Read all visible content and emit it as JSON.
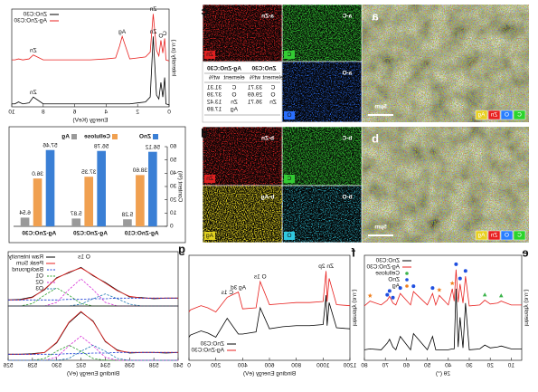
{
  "chart_data": [
    {
      "type": "line",
      "x_label": "Energy (KeV)",
      "y_label": "Intensity (a.u.)",
      "xlim": [
        0,
        10
      ],
      "xticks": [
        0,
        2,
        4,
        6,
        8,
        10
      ],
      "ylim": [
        0,
        100
      ],
      "x": [
        0,
        0.2,
        0.28,
        0.4,
        0.52,
        0.65,
        0.8,
        1.01,
        1.2,
        1.5,
        2,
        2.5,
        2.98,
        3.15,
        3.4,
        4,
        5,
        6,
        7,
        8,
        8.63,
        8.9,
        9.3,
        9.57,
        9.8,
        10
      ],
      "series": [
        {
          "name": "ZnO:C30",
          "color": "#000000",
          "values": [
            2,
            3,
            30,
            10,
            25,
            8,
            12,
            72,
            10,
            5,
            4,
            3,
            3,
            3,
            3,
            3,
            3,
            3,
            3,
            3,
            10,
            4,
            3,
            5,
            3,
            3
          ]
        },
        {
          "name": "Ag-ZnO:C30",
          "color": "#e8211f",
          "values": [
            47,
            48,
            70,
            55,
            68,
            52,
            58,
            95,
            56,
            51,
            50,
            49,
            72,
            62,
            50,
            49,
            48,
            48,
            48,
            48,
            53,
            49,
            48,
            49,
            48,
            48
          ]
        }
      ],
      "annotations": [
        {
          "text": "C",
          "series": 1,
          "x": 0.28
        },
        {
          "text": "O",
          "series": 1,
          "x": 0.52
        },
        {
          "text": "Zn",
          "series": 1,
          "x": 1.01
        },
        {
          "text": "Ag",
          "series": 1,
          "x": 2.98
        },
        {
          "text": "Zn",
          "series": 1,
          "x": 8.63
        },
        {
          "text": "Zn",
          "series": 0,
          "x": 1.01
        },
        {
          "text": "Zn",
          "series": 0,
          "x": 8.63
        }
      ],
      "legend": "upper right"
    },
    {
      "type": "bar",
      "y_label": "Content (%)",
      "categories": [
        "Ag-ZnO:C10",
        "Ag-ZnO:C20",
        "Ag-ZnO:C30"
      ],
      "series": [
        {
          "name": "ZnO",
          "color": "#3a7fd5",
          "values": [
            56.12,
            56.78,
            57.46
          ],
          "value_labels": [
            "56.12",
            "56.78",
            "57.46"
          ]
        },
        {
          "name": "Cellulose",
          "color": "#f0a050",
          "values": [
            38.6,
            37.35,
            36.0
          ],
          "value_labels": [
            "38.60",
            "37.35",
            "36.0"
          ]
        },
        {
          "name": "Ag",
          "color": "#9a9a9a",
          "values": [
            5.28,
            5.87,
            6.54
          ],
          "value_labels": [
            "5.28",
            "5.87",
            "6.54"
          ]
        }
      ],
      "ylim": [
        0,
        60
      ],
      "yticks": [
        0,
        10,
        20,
        30,
        40,
        50,
        60
      ],
      "legend": "upper center"
    },
    {
      "type": "line",
      "label": "g",
      "title": "O 1s",
      "xlim": [
        540,
        526
      ],
      "ylim": [
        0,
        90
      ],
      "x": [
        526,
        527,
        528,
        529,
        530,
        531,
        532,
        533,
        534,
        535,
        536,
        537,
        538,
        539,
        540
      ],
      "series": [
        {
          "name": "Raw intensity",
          "color": "#000000",
          "values": [
            10,
            11,
            15,
            27,
            47,
            55,
            64,
            50,
            39,
            26,
            15,
            14,
            12,
            13,
            13
          ]
        },
        {
          "name": "Peak Sum",
          "color": "#e8211f",
          "values": [
            10,
            10,
            14,
            28,
            46,
            56,
            63,
            51,
            38,
            25,
            16,
            13,
            13,
            13,
            13
          ]
        },
        {
          "name": "Background",
          "color": "#1f3fd6",
          "dashed": true,
          "values": [
            10,
            10,
            10,
            10,
            10,
            11,
            11,
            12,
            12,
            13,
            13,
            13,
            13,
            13,
            13
          ]
        },
        {
          "name": "O1",
          "color": "#2ca02c",
          "dashed": true,
          "values": [
            0,
            0,
            4,
            18,
            30,
            18,
            4,
            0,
            0,
            0,
            0,
            0,
            0,
            0,
            0
          ]
        },
        {
          "name": "O2",
          "color": "#d62bd6",
          "dashed": true,
          "values": [
            0,
            0,
            0,
            0,
            6,
            27,
            45,
            27,
            6,
            0,
            0,
            0,
            0,
            0,
            0
          ]
        },
        {
          "name": "O3",
          "color": "#1f77b4",
          "dashed": true,
          "values": [
            0,
            0,
            0,
            0,
            0,
            0,
            3,
            12,
            20,
            12,
            3,
            0,
            0,
            0,
            0
          ]
        }
      ],
      "legend": "upper right"
    },
    {
      "type": "line",
      "x_label": "Binding Energy (eV)",
      "xlim": [
        540,
        526
      ],
      "xticks": [
        540,
        538,
        536,
        534,
        532,
        530,
        528,
        526
      ],
      "ylim": [
        0,
        90
      ],
      "x": [
        526,
        527,
        528,
        529,
        530,
        531,
        532,
        533,
        534,
        535,
        536,
        537,
        538,
        539,
        540
      ],
      "series": [
        {
          "name": "Raw intensity",
          "color": "#000000",
          "values": [
            10,
            10,
            11,
            13,
            29,
            62,
            80,
            65,
            31,
            17,
            12,
            13,
            13,
            12,
            13
          ]
        },
        {
          "name": "Peak Sum",
          "color": "#e8211f",
          "values": [
            10,
            10,
            10,
            13,
            30,
            63,
            81,
            64,
            32,
            16,
            13,
            13,
            13,
            13,
            13
          ]
        },
        {
          "name": "Background",
          "color": "#1f3fd6",
          "dashed": true,
          "values": [
            10,
            10,
            10,
            10,
            10,
            11,
            11,
            12,
            12,
            13,
            13,
            13,
            13,
            13,
            13
          ]
        },
        {
          "name": "O1",
          "color": "#2ca02c",
          "dashed": true,
          "values": [
            0,
            0,
            0,
            3,
            15,
            25,
            15,
            3,
            0,
            0,
            0,
            0,
            0,
            0,
            0
          ]
        },
        {
          "name": "O2",
          "color": "#d62bd6",
          "dashed": true,
          "values": [
            0,
            0,
            0,
            0,
            5,
            24,
            40,
            24,
            5,
            0,
            0,
            0,
            0,
            0,
            0
          ]
        },
        {
          "name": "O3",
          "color": "#1f77b4",
          "dashed": true,
          "values": [
            0,
            0,
            0,
            0,
            0,
            3,
            15,
            25,
            15,
            3,
            0,
            0,
            0,
            0,
            0
          ]
        }
      ],
      "legend": "none"
    },
    {
      "type": "line",
      "label": "f",
      "x_label": "Binding Energy (eV)",
      "y_label": "Intensity (a.u.)",
      "xlim": [
        1200,
        0
      ],
      "xticks": [
        1200,
        1000,
        800,
        600,
        400,
        200,
        0
      ],
      "ylim": [
        0,
        100
      ],
      "x": [
        1200,
        1100,
        1045,
        1030,
        1022,
        1000,
        900,
        800,
        700,
        600,
        531,
        500,
        400,
        368,
        285,
        200,
        140,
        90,
        10,
        0
      ],
      "series": [
        {
          "name": "ZnO:C30",
          "color": "#000000",
          "values": [
            30,
            31,
            55,
            33,
            62,
            34,
            33,
            33,
            32,
            30,
            50,
            27,
            25,
            25,
            40,
            22,
            26,
            28,
            24,
            22
          ]
        },
        {
          "name": "Ag-ZnO:C30",
          "color": "#e8211f",
          "values": [
            52,
            53,
            78,
            56,
            85,
            56,
            55,
            55,
            54,
            53,
            75,
            50,
            49,
            65,
            60,
            46,
            50,
            52,
            48,
            46
          ]
        }
      ],
      "annotations": [
        {
          "text": "Zn 2p",
          "series": 1,
          "x": 1022
        },
        {
          "text": "O 1s",
          "series": 1,
          "x": 531
        },
        {
          "text": "Ag 3d",
          "series": 1,
          "x": 368
        },
        {
          "text": "C 1s",
          "series": 1,
          "x": 285
        }
      ],
      "legend": "lower right"
    },
    {
      "type": "line",
      "label": "e",
      "x_label": "2θ (°)",
      "y_label": "Intensity (a.u.)",
      "xlim": [
        5,
        80
      ],
      "xticks": [
        10,
        20,
        30,
        40,
        50,
        60,
        70,
        80
      ],
      "ylim": [
        0,
        110
      ],
      "x": [
        5,
        10,
        14.8,
        16.5,
        20,
        22.6,
        25,
        30,
        31.8,
        33,
        34.4,
        35.3,
        36.3,
        37.2,
        38.1,
        40,
        44.3,
        46,
        47.5,
        50,
        56.6,
        58,
        62.9,
        65,
        66.4,
        68,
        69.1,
        72,
        77.3,
        80
      ],
      "series": [
        {
          "name": "ZnO:C30",
          "color": "#000000",
          "values": [
            12,
            12,
            15,
            14,
            13,
            16,
            12,
            11,
            60,
            13,
            45,
            14,
            75,
            12,
            12,
            11,
            11,
            11,
            25,
            11,
            28,
            11,
            25,
            11,
            14,
            22,
            18,
            11,
            12,
            11
          ]
        },
        {
          "name": "Ag-ZnO:C30",
          "color": "#e8211f",
          "values": [
            58,
            58,
            62,
            60,
            59,
            63,
            58,
            57,
            88,
            60,
            80,
            61,
            95,
            62,
            75,
            58,
            68,
            58,
            70,
            58,
            72,
            58,
            70,
            58,
            60,
            67,
            63,
            58,
            62,
            57
          ]
        }
      ],
      "markers": [
        {
          "name": "Cellulose",
          "color": "#3cb44b",
          "symbol": "triangle",
          "x": [
            14.8,
            22.6
          ]
        },
        {
          "name": "ZnO",
          "color": "#1f4fe0",
          "symbol": "circle",
          "x": [
            31.8,
            34.4,
            36.3,
            47.5,
            56.6,
            62.9,
            66.4,
            68,
            69.1
          ]
        },
        {
          "name": "Ag",
          "color": "#f08020",
          "symbol": "star",
          "x": [
            38.1,
            44.3,
            77.3
          ]
        }
      ],
      "legend": "upper right"
    }
  ],
  "sem": [
    {
      "label": "a",
      "scale": "5μm",
      "elements": [
        {
          "name": "C",
          "color": "#2bd42b"
        },
        {
          "name": "O",
          "color": "#2a7fff"
        },
        {
          "name": "Zn",
          "color": "#e82020"
        },
        {
          "name": "Ag",
          "color": "#e8d020"
        }
      ]
    },
    {
      "label": "b",
      "scale": "5μm",
      "elements": [
        {
          "name": "C",
          "color": "#2bd42b"
        },
        {
          "name": "O",
          "color": "#2a7fff"
        },
        {
          "name": "Zn",
          "color": "#e82020"
        },
        {
          "name": "Ag",
          "color": "#e8d020"
        }
      ]
    }
  ],
  "mapping": [
    {
      "label": "c",
      "maps": [
        {
          "title": "a-C",
          "element": "C",
          "color": "#33cc33"
        },
        {
          "title": "a-Zn",
          "element": "Zn",
          "color": "#e02020"
        },
        {
          "title": "a-O",
          "element": "O",
          "color": "#2a6fff"
        }
      ],
      "table": {
        "headers": [
          "ZnO:C30",
          "Ag-ZnO:C30"
        ],
        "columns": [
          "element",
          "wt%",
          "element",
          "wt%"
        ],
        "rows": [
          [
            "C",
            33.71,
            "C",
            31.31
          ],
          [
            "O",
            29.69,
            "O",
            37.39
          ],
          [
            "Zn",
            36.71,
            "Zn",
            13.42
          ],
          [
            null,
            null,
            "Ag",
            17.89
          ]
        ]
      }
    },
    {
      "label": "d",
      "maps": [
        {
          "title": "b-C",
          "element": "C",
          "color": "#33cc33"
        },
        {
          "title": "b-Zn",
          "element": "Zn",
          "color": "#e02020"
        },
        {
          "title": "b-O",
          "element": "O",
          "color": "#30c8e0"
        },
        {
          "title": "b-Ag",
          "element": "Ag",
          "color": "#e0d020"
        }
      ]
    }
  ]
}
